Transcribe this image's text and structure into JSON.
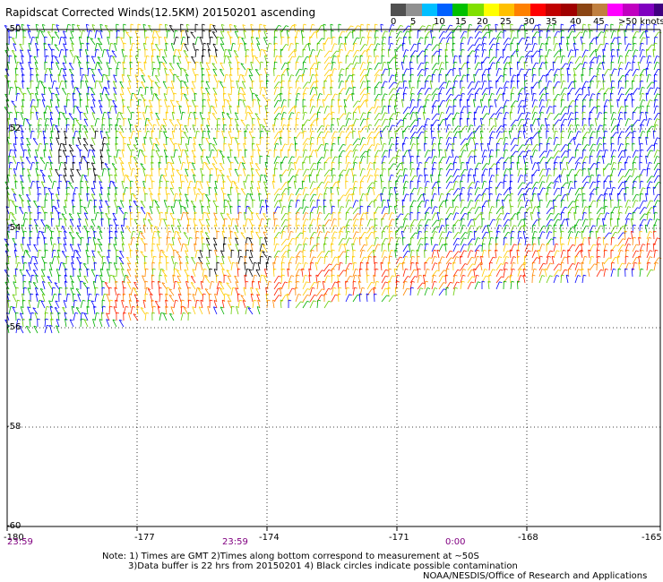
{
  "title": "Rapidscat Corrected Winds(12.5KM) 20150201 ascending",
  "legend": {
    "labels": [
      "0",
      "5",
      "10",
      "15",
      "20",
      "25",
      "30",
      "35",
      "40",
      "45",
      ">50 knots"
    ],
    "colors": [
      "#505050",
      "#909090",
      "#00bfff",
      "#0060ff",
      "#00c000",
      "#80e000",
      "#ffff00",
      "#ffc000",
      "#ff8000",
      "#ff0000",
      "#c00000",
      "#a00000",
      "#8b4513",
      "#c08040",
      "#ff00ff",
      "#c000c0",
      "#8000c0",
      "#400080"
    ]
  },
  "map": {
    "lon_ticks": [
      "-180",
      "-177",
      "-174",
      "-171",
      "-168",
      "-165"
    ],
    "lat_ticks": [
      "-50",
      "-52",
      "-54",
      "-56",
      "-58",
      "-60"
    ]
  },
  "times": {
    "t1": "23:59",
    "t2": "23:59",
    "t3": "0:00"
  },
  "notes": {
    "line1": "Note: 1) Times are GMT 2)Times along bottom correspond to measurement at ~50S",
    "line2": "3)Data buffer is 22 hrs from 20150201 4) Black circles indicate possible contamination",
    "line3": "NOAA/NESDIS/Office of Research and Applications"
  },
  "wind_field": {
    "description_colors": {
      "blue": "#0000ff",
      "green": "#00b000",
      "lightgreen": "#66cc00",
      "yellow": "#ffcc00",
      "orange": "#ff8800",
      "red": "#ff2200",
      "black": "#000000"
    }
  }
}
